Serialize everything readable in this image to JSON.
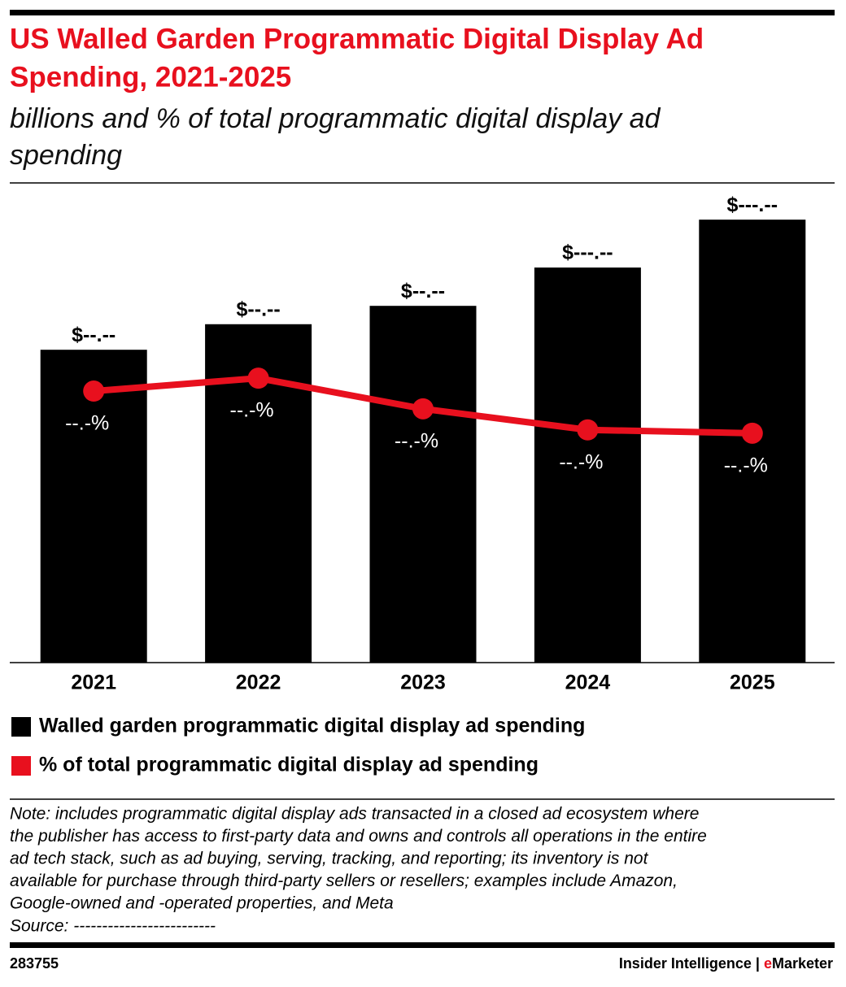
{
  "chart_data": {
    "type": "bar",
    "title": [
      "US Walled Garden Programmatic Digital Display Ad",
      "Spending, 2021-2025"
    ],
    "subtitle": [
      "billions and % of total programmatic digital display ad",
      "spending"
    ],
    "categories": [
      "2021",
      "2022",
      "2023",
      "2024",
      "2025"
    ],
    "series": [
      {
        "name": "Walled garden programmatic digital display ad spending",
        "type": "bar",
        "color": "#000000",
        "values": [
          39.2,
          42.4,
          44.7,
          49.5,
          55.5
        ],
        "value_labels": [
          "$--.--",
          "$--.--",
          "$--.--",
          "$---.--",
          "$---.--"
        ]
      },
      {
        "name": "% of total programmatic digital display ad spending",
        "type": "line",
        "color": "#e8101e",
        "axis": "y2",
        "values": [
          56.7,
          59.4,
          53.0,
          48.6,
          47.9
        ],
        "value_labels": [
          "--.-%",
          "--.-%",
          "--.-%",
          "--.-%",
          "--.-%"
        ]
      }
    ],
    "ylim": [
      0,
      60
    ],
    "y2lim": [
      0,
      100
    ]
  },
  "note": [
    "Note: includes programmatic digital display ads transacted in a closed ad ecosystem where",
    "the publisher has access to first-party data and owns and controls all operations in the entire",
    "ad tech stack, such as ad buying, serving, tracking, and reporting; its inventory is not",
    "available for purchase through third-party sellers or resellers; examples include Amazon,",
    "Google-owned and -operated properties, and Meta"
  ],
  "source": "Source: -------------------------",
  "footer": {
    "id": "283755",
    "brand": "Insider Intelligence",
    "separator": "|",
    "brand2_e": "e",
    "brand2_rest": "Marketer"
  }
}
